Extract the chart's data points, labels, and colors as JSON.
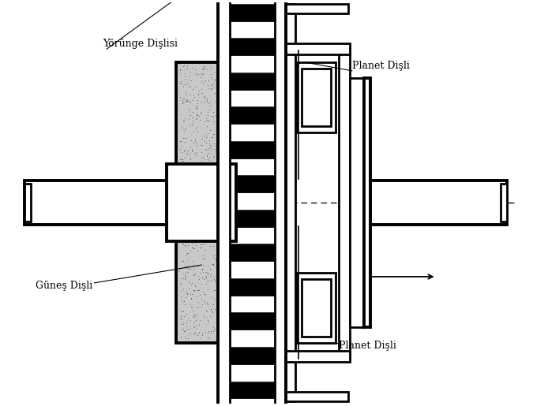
{
  "bg_color": "#ffffff",
  "line_color": "#000000",
  "gray_fill": "#c8c8c8",
  "dark_fill": "#111111",
  "light_gray": "#d8d8d8",
  "labels": {
    "yorunge": "Yörünge Dişlisi",
    "planet_top": "Planet Dişli",
    "gunes": "Güneş Dişli",
    "planet_bot": "Planet Dişli"
  },
  "lw_main": 2.0,
  "lw_thick": 2.8,
  "lw_thin": 0.8
}
